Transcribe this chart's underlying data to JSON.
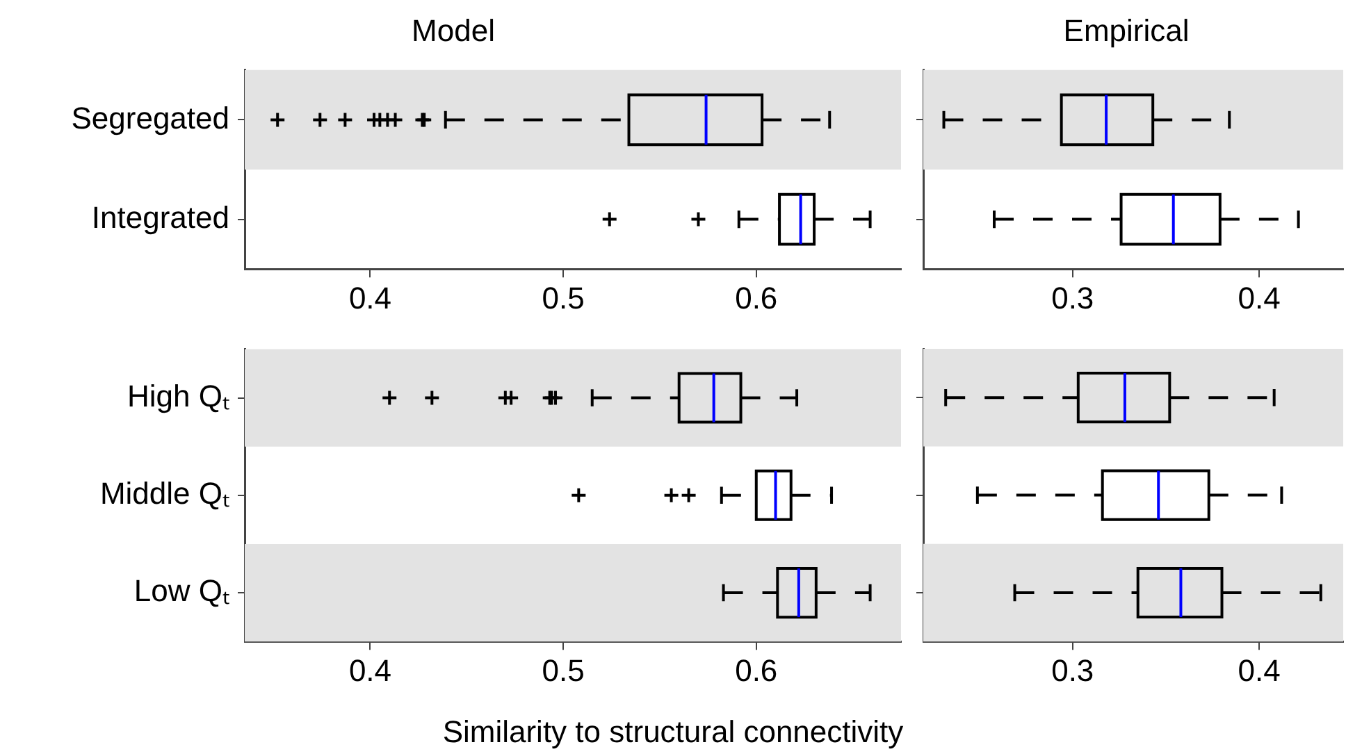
{
  "chart_data": [
    {
      "type": "box",
      "orientation": "horizontal",
      "title": "Model",
      "categories": [
        "Segregated",
        "Integrated"
      ],
      "xlim": [
        0.335,
        0.675
      ],
      "xticks": [
        0.4,
        0.5,
        0.6
      ],
      "marker": "cross",
      "grid": false,
      "legend": false,
      "bands": [
        {
          "axis": "y",
          "from": "Segregated",
          "to": "Segregated",
          "color": "#e3e3e3"
        }
      ],
      "boxes": [
        {
          "low": 0.439,
          "q1": 0.534,
          "median": 0.574,
          "q3": 0.603,
          "high": 0.638,
          "outliers": [
            0.352,
            0.374,
            0.387,
            0.402,
            0.405,
            0.409,
            0.413,
            0.427,
            0.428
          ]
        },
        {
          "low": 0.591,
          "q1": 0.612,
          "median": 0.623,
          "q3": 0.63,
          "high": 0.659,
          "outliers": [
            0.524,
            0.57
          ]
        }
      ]
    },
    {
      "type": "box",
      "orientation": "horizontal",
      "title": "Empirical",
      "categories": [
        "Segregated",
        "Integrated"
      ],
      "xlim": [
        0.22,
        0.445
      ],
      "xticks": [
        0.3,
        0.4
      ],
      "tick_labels": "x",
      "grid": false,
      "legend": false,
      "bands": [
        {
          "axis": "y",
          "from": "Segregated",
          "to": "Segregated",
          "color": "#e3e3e3"
        }
      ],
      "boxes": [
        {
          "low": 0.231,
          "q1": 0.294,
          "median": 0.318,
          "q3": 0.343,
          "high": 0.384
        },
        {
          "low": 0.258,
          "q1": 0.326,
          "median": 0.354,
          "q3": 0.379,
          "high": 0.421
        }
      ]
    },
    {
      "type": "box",
      "orientation": "horizontal",
      "xlabel": "Similarity to structural connectivity",
      "categories": [
        "High Qₜ",
        "Middle Qₜ",
        "Low Qₜ"
      ],
      "xlim": [
        0.335,
        0.675
      ],
      "xticks": [
        0.4,
        0.5,
        0.6
      ],
      "marker": "cross",
      "grid": false,
      "legend": false,
      "bands": [
        {
          "axis": "y",
          "from": "High Qₜ",
          "to": "High Qₜ",
          "color": "#e3e3e3"
        },
        {
          "axis": "y",
          "from": "Low Qₜ",
          "to": "Low Qₜ",
          "color": "#e3e3e3"
        }
      ],
      "boxes": [
        {
          "low": 0.515,
          "q1": 0.56,
          "median": 0.578,
          "q3": 0.592,
          "high": 0.621,
          "outliers": [
            0.41,
            0.432,
            0.47,
            0.473,
            0.493,
            0.494,
            0.496
          ]
        },
        {
          "low": 0.582,
          "q1": 0.6,
          "median": 0.61,
          "q3": 0.618,
          "high": 0.639,
          "outliers": [
            0.508,
            0.556,
            0.565
          ]
        },
        {
          "low": 0.583,
          "q1": 0.611,
          "median": 0.622,
          "q3": 0.631,
          "high": 0.659
        }
      ]
    },
    {
      "type": "box",
      "orientation": "horizontal",
      "categories": [
        "High Qₜ",
        "Middle Qₜ",
        "Low Qₜ"
      ],
      "xlim": [
        0.22,
        0.445
      ],
      "xticks": [
        0.3,
        0.4
      ],
      "tick_labels": "x",
      "grid": false,
      "legend": false,
      "bands": [
        {
          "axis": "y",
          "from": "High Qₜ",
          "to": "High Qₜ",
          "color": "#e3e3e3"
        },
        {
          "axis": "y",
          "from": "Low Qₜ",
          "to": "Low Qₜ",
          "color": "#e3e3e3"
        }
      ],
      "boxes": [
        {
          "low": 0.232,
          "q1": 0.303,
          "median": 0.328,
          "q3": 0.352,
          "high": 0.408
        },
        {
          "low": 0.249,
          "q1": 0.316,
          "median": 0.346,
          "q3": 0.373,
          "high": 0.412
        },
        {
          "low": 0.269,
          "q1": 0.335,
          "median": 0.358,
          "q3": 0.38,
          "high": 0.433
        }
      ]
    }
  ]
}
